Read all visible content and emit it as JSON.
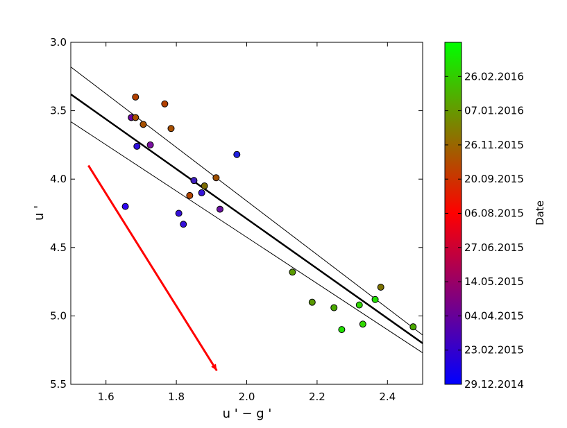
{
  "chart_data": {
    "type": "scatter",
    "xlabel": "u ' − g '",
    "ylabel": "u '",
    "xlim": [
      1.5,
      2.5
    ],
    "ylim": [
      5.5,
      3.0
    ],
    "y_inverted": true,
    "xticks": [
      {
        "value": 1.6,
        "label": "1.6"
      },
      {
        "value": 1.8,
        "label": "1.8"
      },
      {
        "value": 2.0,
        "label": "2.0"
      },
      {
        "value": 2.2,
        "label": "2.2"
      },
      {
        "value": 2.4,
        "label": "2.4"
      }
    ],
    "yticks": [
      {
        "value": 3.0,
        "label": "3.0"
      },
      {
        "value": 3.5,
        "label": "3.5"
      },
      {
        "value": 4.0,
        "label": "4.0"
      },
      {
        "value": 4.5,
        "label": "4.5"
      },
      {
        "value": 5.0,
        "label": "5.0"
      },
      {
        "value": 5.5,
        "label": "5.5"
      }
    ],
    "points": [
      {
        "x": 1.655,
        "y": 4.2,
        "color": "#2d06f0"
      },
      {
        "x": 1.672,
        "y": 3.55,
        "color": "#6a00a0"
      },
      {
        "x": 1.684,
        "y": 3.4,
        "color": "#b24000"
      },
      {
        "x": 1.684,
        "y": 3.55,
        "color": "#a85000"
      },
      {
        "x": 1.688,
        "y": 3.76,
        "color": "#3010e0"
      },
      {
        "x": 1.706,
        "y": 3.6,
        "color": "#a55000"
      },
      {
        "x": 1.726,
        "y": 3.75,
        "color": "#7a10a0"
      },
      {
        "x": 1.767,
        "y": 3.45,
        "color": "#b24000"
      },
      {
        "x": 1.785,
        "y": 3.63,
        "color": "#a85000"
      },
      {
        "x": 1.807,
        "y": 4.25,
        "color": "#3510d8"
      },
      {
        "x": 1.82,
        "y": 4.33,
        "color": "#3510d8"
      },
      {
        "x": 1.838,
        "y": 4.12,
        "color": "#b04400"
      },
      {
        "x": 1.85,
        "y": 4.01,
        "color": "#4020c0"
      },
      {
        "x": 1.872,
        "y": 4.1,
        "color": "#3515d8"
      },
      {
        "x": 1.88,
        "y": 4.05,
        "color": "#7a6a00"
      },
      {
        "x": 1.913,
        "y": 3.99,
        "color": "#a05000"
      },
      {
        "x": 1.924,
        "y": 4.22,
        "color": "#6a10a0"
      },
      {
        "x": 1.972,
        "y": 3.82,
        "color": "#2020e0"
      },
      {
        "x": 2.13,
        "y": 4.68,
        "color": "#5a9a00"
      },
      {
        "x": 2.186,
        "y": 4.9,
        "color": "#5a9a00"
      },
      {
        "x": 2.248,
        "y": 4.94,
        "color": "#4aa800"
      },
      {
        "x": 2.27,
        "y": 5.1,
        "color": "#20e000"
      },
      {
        "x": 2.32,
        "y": 4.92,
        "color": "#30d800"
      },
      {
        "x": 2.33,
        "y": 5.06,
        "color": "#30d800"
      },
      {
        "x": 2.365,
        "y": 4.88,
        "color": "#20e000"
      },
      {
        "x": 2.381,
        "y": 4.79,
        "color": "#7a7000"
      },
      {
        "x": 2.473,
        "y": 5.08,
        "color": "#4aa800"
      }
    ],
    "fit_line": {
      "x": [
        1.5,
        2.5
      ],
      "y": [
        3.38,
        5.2
      ],
      "color": "#000000"
    },
    "band_lines": [
      {
        "x": [
          1.5,
          2.5
        ],
        "y": [
          3.18,
          5.14
        ],
        "color": "#000000"
      },
      {
        "x": [
          1.5,
          2.5
        ],
        "y": [
          3.58,
          5.27
        ],
        "color": "#000000"
      }
    ],
    "arrow": {
      "x": [
        1.55,
        1.915
      ],
      "y": [
        3.9,
        5.4
      ],
      "color": "#ff0000"
    },
    "colorbar": {
      "label": "Date",
      "gradient": [
        "#0000ff",
        "#ff0000",
        "#00ff00"
      ],
      "min_label": "29.12.2014",
      "max_label": "",
      "ticks": [
        {
          "fraction": 0.0,
          "label": "29.12.2014"
        },
        {
          "fraction": 0.1,
          "label": "23.02.2015"
        },
        {
          "fraction": 0.2,
          "label": "04.04.2015"
        },
        {
          "fraction": 0.3,
          "label": "14.05.2015"
        },
        {
          "fraction": 0.4,
          "label": "27.06.2015"
        },
        {
          "fraction": 0.5,
          "label": "06.08.2015"
        },
        {
          "fraction": 0.6,
          "label": "20.09.2015"
        },
        {
          "fraction": 0.7,
          "label": "26.11.2015"
        },
        {
          "fraction": 0.8,
          "label": "07.01.2016"
        },
        {
          "fraction": 0.9,
          "label": "26.02.2016"
        }
      ]
    },
    "grid": false,
    "legend": "none"
  }
}
